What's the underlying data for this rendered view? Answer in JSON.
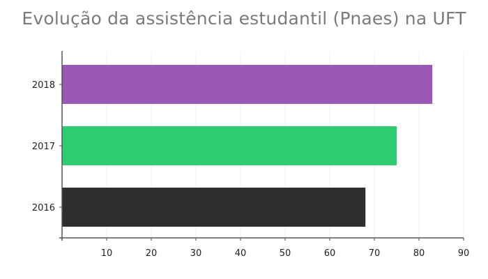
{
  "chart_data": {
    "type": "bar",
    "orientation": "horizontal",
    "title": "Evolução da assistência estudantil (Pnaes) na UFT",
    "categories": [
      "2018",
      "2017",
      "2016"
    ],
    "values": [
      83,
      75,
      68
    ],
    "bar_colors": [
      "#9b59b6",
      "#2ecc71",
      "#2e2e30"
    ],
    "xlim": [
      0,
      90
    ],
    "x_ticks": [
      10,
      20,
      30,
      40,
      50,
      60,
      70,
      80,
      90
    ],
    "xlabel": "",
    "ylabel": "",
    "grid": "vertical",
    "legend": "none"
  }
}
